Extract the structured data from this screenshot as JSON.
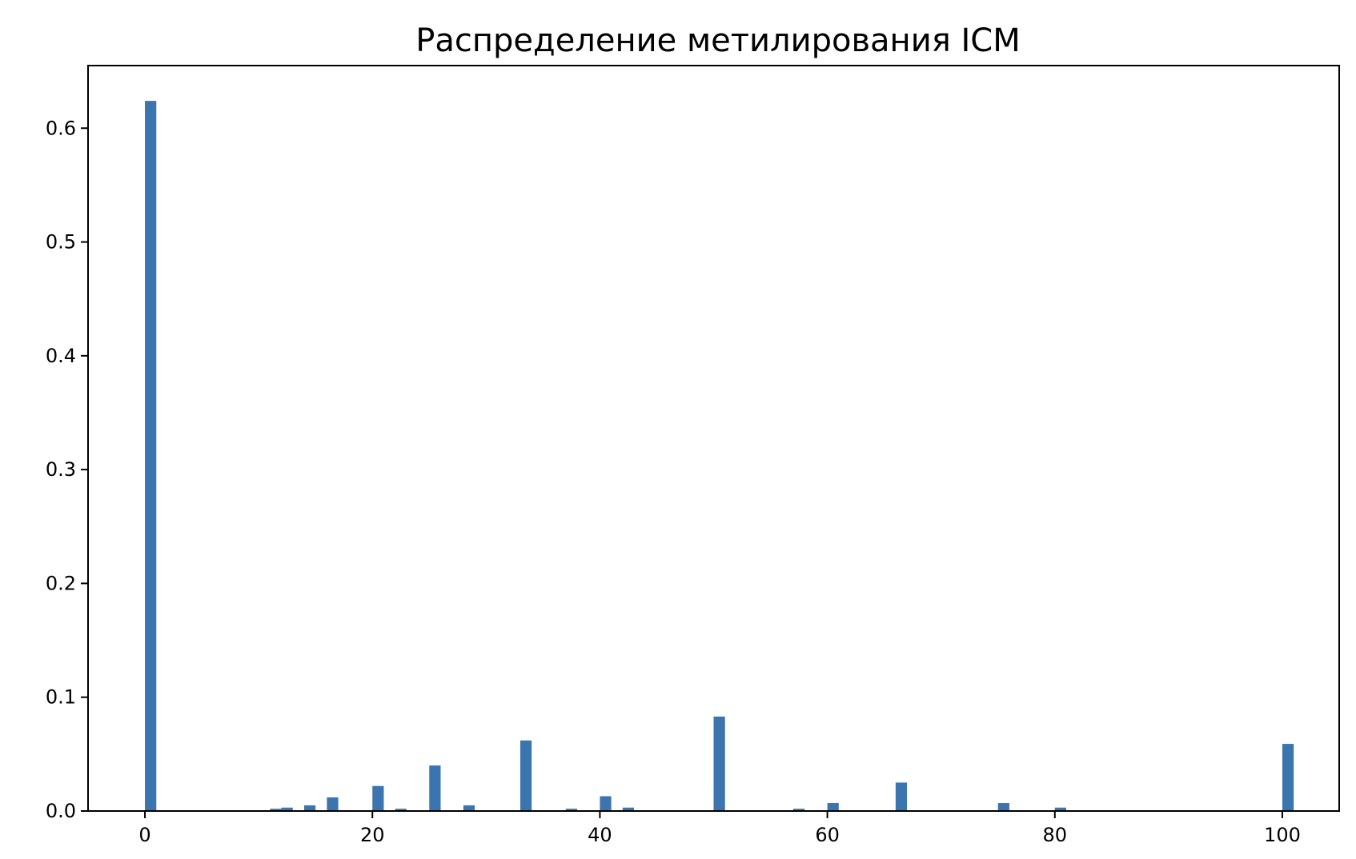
{
  "chart_data": {
    "type": "bar",
    "title": "Распределение метилирования ICM",
    "xlabel": "",
    "ylabel": "",
    "xlim": [
      -5,
      105
    ],
    "ylim": [
      0,
      0.655
    ],
    "xticks": [
      0,
      20,
      40,
      60,
      80,
      100
    ],
    "yticks": [
      0.0,
      0.1,
      0.2,
      0.3,
      0.4,
      0.5,
      0.6
    ],
    "xtick_labels": [
      "0",
      "20",
      "40",
      "60",
      "80",
      "100"
    ],
    "ytick_labels": [
      "0.0",
      "0.1",
      "0.2",
      "0.3",
      "0.4",
      "0.5",
      "0.6"
    ],
    "grid": false,
    "bar_color": "#3a75b0",
    "bin_width": 1,
    "x": [
      0,
      11,
      12,
      14,
      16,
      20,
      22,
      25,
      28,
      33,
      37,
      40,
      42,
      50,
      57,
      60,
      66,
      75,
      80,
      100
    ],
    "values": [
      0.624,
      0.002,
      0.003,
      0.005,
      0.012,
      0.022,
      0.002,
      0.04,
      0.005,
      0.062,
      0.002,
      0.013,
      0.003,
      0.083,
      0.002,
      0.007,
      0.025,
      0.007,
      0.003,
      0.059
    ]
  }
}
